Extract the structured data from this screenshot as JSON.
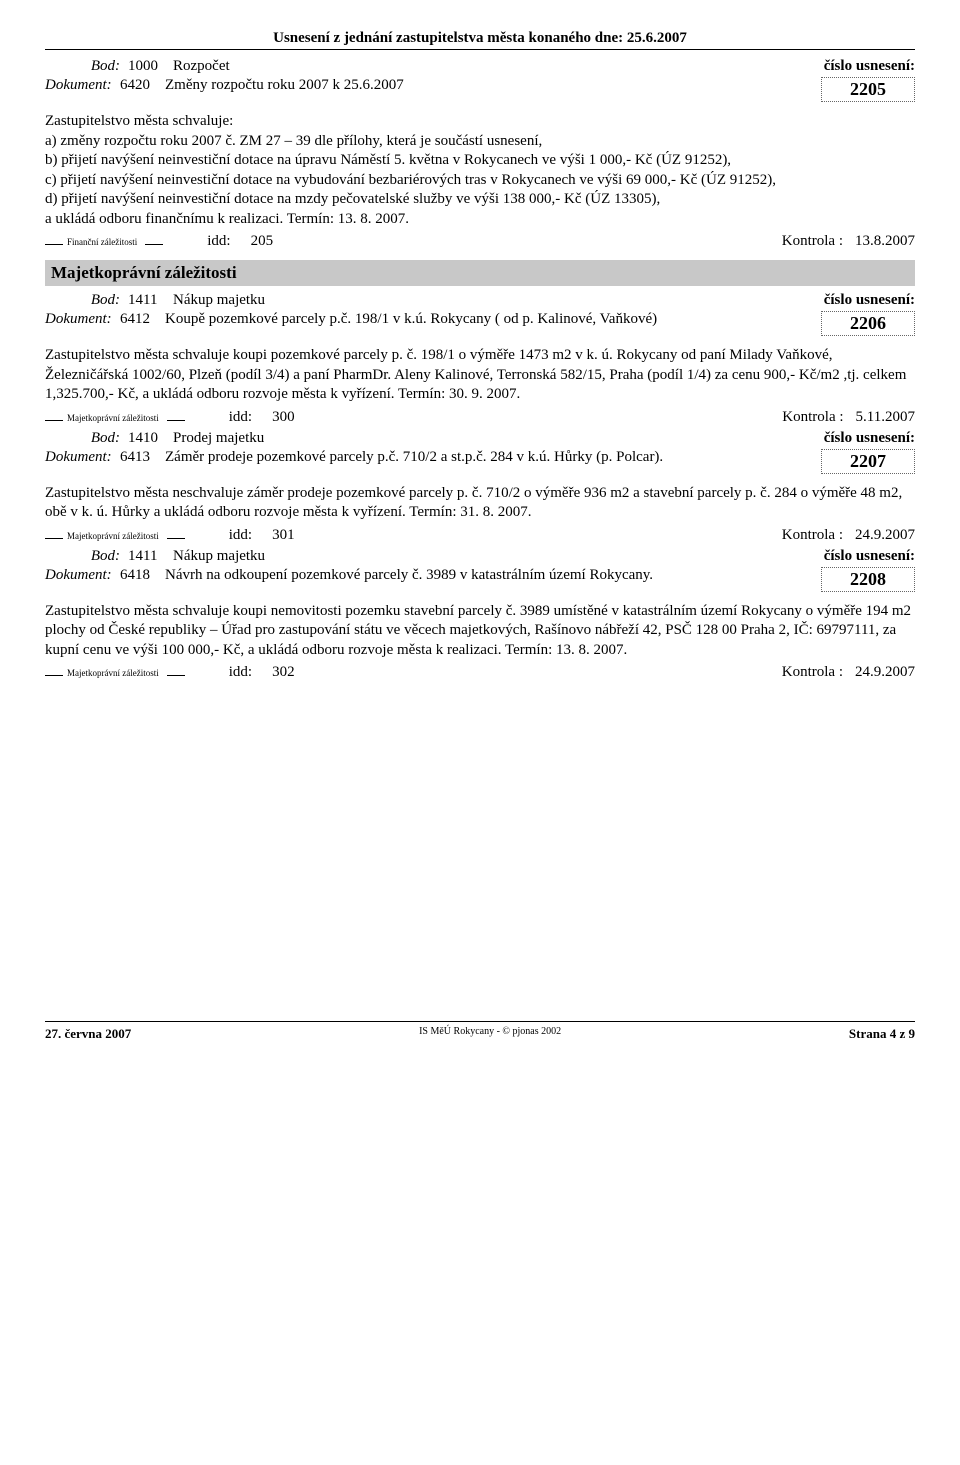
{
  "header": "Usnesení z  jednání zastupitelstva města konaného dne: 25.6.2007",
  "labels": {
    "bod": "Bod:",
    "dokument": "Dokument:",
    "cislo": "číslo usnesení:",
    "idd": "idd:",
    "kontrola": "Kontrola :"
  },
  "items": [
    {
      "bod_num": "1000",
      "bod_title": "Rozpočet",
      "dok_num": "6420",
      "dok_title": "Změny rozpočtu roku 2007 k 25.6.2007",
      "res_num": "2205",
      "body": "Zastupitelstvo města schvaluje:\na) změny rozpočtu roku 2007 č. ZM 27 – 39 dle přílohy, která je součástí usnesení,\nb) přijetí navýšení neinvestiční dotace na úpravu Náměstí 5. května v Rokycanech ve výši 1 000,- Kč (ÚZ 91252),\nc) přijetí navýšení neinvestiční dotace na vybudování bezbariérových tras v Rokycanech ve výši 69 000,- Kč (ÚZ 91252),\nd) přijetí navýšení neinvestiční dotace na mzdy pečovatelské služby ve výši 138 000,- Kč (ÚZ 13305),\na ukládá odboru finančnímu k realizaci. Termín: 13. 8. 2007.",
      "section": "Finanční záležitosti",
      "idd": "205",
      "kontrola_date": "13.8.2007"
    },
    {
      "section_header": "Majetkoprávní záležitosti",
      "bod_num": "1411",
      "bod_title": "Nákup majetku",
      "dok_num": "6412",
      "dok_title": "Koupě pozemkové parcely p.č. 198/1 v k.ú. Rokycany ( od p. Kalinové, Vaňkové)",
      "res_num": "2206",
      "body": "Zastupitelstvo města schvaluje koupi pozemkové parcely p. č. 198/1 o výměře 1473 m2 v k. ú. Rokycany od paní Milady Vaňkové, Železničářská 1002/60, Plzeň (podíl 3/4) a paní PharmDr. Aleny Kalinové, Terronská 582/15, Praha (podíl 1/4) za cenu 900,- Kč/m2 ,tj. celkem 1,325.700,- Kč, a ukládá odboru rozvoje města k vyřízení. Termín: 30. 9. 2007.",
      "section": "Majetkoprávní záležitosti",
      "idd": "300",
      "kontrola_date": "5.11.2007"
    },
    {
      "bod_num": "1410",
      "bod_title": "Prodej majetku",
      "dok_num": "6413",
      "dok_title": "Záměr prodeje pozemkové parcely p.č. 710/2 a st.p.č. 284 v k.ú. Hůrky (p. Polcar).",
      "res_num": "2207",
      "body": "Zastupitelstvo města neschvaluje záměr prodeje pozemkové parcely p. č. 710/2 o výměře 936 m2 a stavební parcely p. č. 284 o výměře 48 m2, obě v k. ú. Hůrky a ukládá odboru rozvoje města k vyřízení. Termín: 31. 8. 2007.",
      "section": "Majetkoprávní záležitosti",
      "idd": "301",
      "kontrola_date": "24.9.2007"
    },
    {
      "bod_num": "1411",
      "bod_title": "Nákup majetku",
      "dok_num": "6418",
      "dok_title": "Návrh na odkoupení pozemkové parcely č. 3989 v katastrálním území Rokycany.",
      "res_num": "2208",
      "body": "Zastupitelstvo města schvaluje koupi nemovitosti pozemku stavební parcely č. 3989 umístěné v katastrálním území Rokycany o výměře 194 m2 plochy od České republiky – Úřad pro zastupování státu ve věcech majetkových, Rašínovo nábřeží 42, PSČ 128 00 Praha 2, IČ: 69797111, za kupní cenu ve výši 100 000,- Kč, a ukládá odboru rozvoje města k realizaci. Termín: 13. 8. 2007.",
      "section": "Majetkoprávní záležitosti",
      "idd": "302",
      "kontrola_date": "24.9.2007"
    }
  ],
  "footer": {
    "left": "27. června 2007",
    "center": "IS MěÚ Rokycany - © pjonas 2002",
    "right": "Strana 4 z 9"
  }
}
